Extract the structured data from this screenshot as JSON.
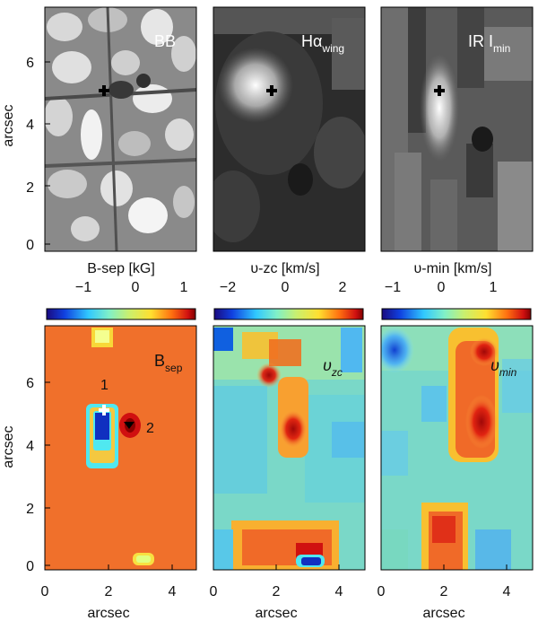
{
  "figure": {
    "top_row": {
      "panels": [
        {
          "id": "bb",
          "label": "BB"
        },
        {
          "id": "halpha",
          "label_main": "Hα",
          "label_sub": "wing"
        },
        {
          "id": "ir",
          "label_main": "IR  I",
          "label_sub": "min"
        }
      ],
      "y_axis_label": "arcsec",
      "y_ticks": [
        "0",
        "2",
        "4",
        "6"
      ]
    },
    "colorbars": [
      {
        "title": "B-sep  [kG]",
        "ticks": [
          "−1",
          "0",
          "1"
        ]
      },
      {
        "title": "υ-zc  [km/s]",
        "ticks": [
          "−2",
          "0",
          "2"
        ]
      },
      {
        "title": "υ-min  [km/s]",
        "ticks": [
          "−1",
          "0",
          "1"
        ]
      }
    ],
    "bottom_row": {
      "panels": [
        {
          "id": "bsep",
          "label_main": "B",
          "label_sub": "sep",
          "annotations": [
            "1",
            "2"
          ]
        },
        {
          "id": "vzc",
          "label_main": "υ",
          "label_sub": "zc"
        },
        {
          "id": "vmin",
          "label_main": "υ",
          "label_sub": "min"
        }
      ],
      "y_axis_label": "arcsec",
      "y_ticks": [
        "0",
        "2",
        "4",
        "6"
      ],
      "x_axis_label": "arcsec",
      "x_ticks": [
        "0",
        "2",
        "4"
      ]
    },
    "colors": {
      "bsep_bg": "#f06a28",
      "bsep_blue": "#1030c0",
      "bsep_cyan": "#50e8f0",
      "map_bg": "#7ad8c8",
      "red": "#d81818",
      "deep_red": "#a00808"
    }
  }
}
